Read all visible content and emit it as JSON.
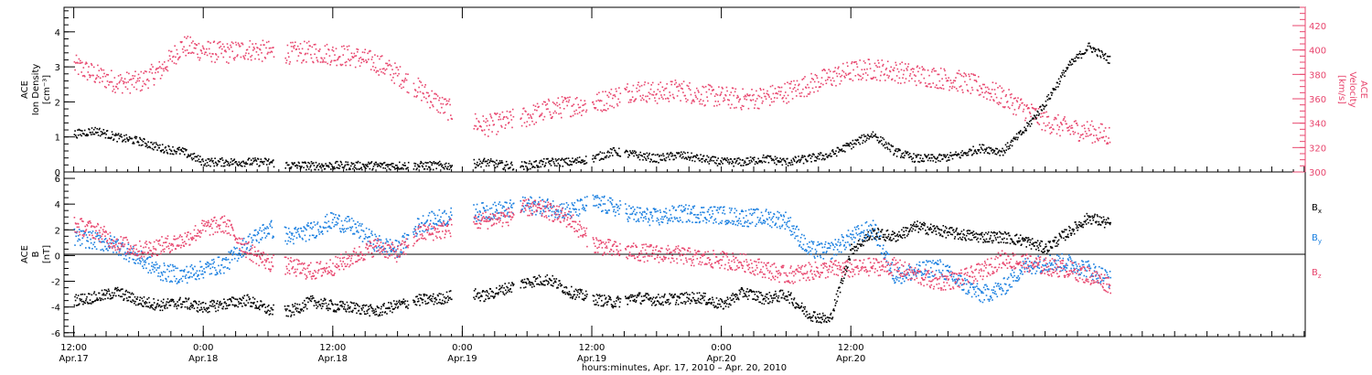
{
  "chart_data": [
    {
      "type": "scatter",
      "panel": "ACE ion density / velocity",
      "ylabel_lines": [
        "ACE",
        "Ion Density",
        "[cm⁻³]"
      ],
      "y2label_lines": [
        "ACE",
        "Velocity",
        "[km/s]"
      ],
      "ylim": [
        0,
        4.7
      ],
      "y_ticks": [
        "0",
        "1",
        "2",
        "3",
        "4"
      ],
      "y2lim": [
        300,
        435
      ],
      "y2_ticks": [
        "300",
        "320",
        "340",
        "360",
        "380",
        "400",
        "420"
      ],
      "xlim_hours": [
        0,
        96
      ],
      "data_gaps_hours": [
        [
          18.5,
          19.5
        ],
        [
          31.0,
          31.4
        ],
        [
          35.0,
          37.0
        ],
        [
          40.7,
          41.3
        ],
        [
          47.5,
          48.0
        ],
        [
          50.6,
          51.0
        ]
      ],
      "series": [
        {
          "name": "",
          "color": "#000000",
          "axis": "left",
          "x_hours": [
            0,
            2,
            4,
            6,
            8,
            10,
            12,
            14,
            16,
            18,
            20,
            22,
            24,
            26,
            28,
            30,
            32,
            34,
            36,
            38,
            40,
            42,
            44,
            46,
            48,
            50,
            52,
            54,
            56,
            58,
            60,
            62,
            64,
            66,
            68,
            70,
            72,
            74,
            76,
            78,
            80,
            82,
            84,
            86,
            88,
            90,
            92,
            94,
            96
          ],
          "values": [
            1.1,
            1.2,
            1.0,
            0.9,
            0.7,
            0.6,
            0.3,
            0.3,
            0.3,
            0.3,
            0.2,
            0.2,
            0.2,
            0.2,
            0.2,
            0.2,
            0.2,
            0.2,
            0.2,
            0.3,
            0.2,
            0.2,
            0.3,
            0.3,
            0.4,
            0.6,
            0.5,
            0.4,
            0.5,
            0.4,
            0.3,
            0.3,
            0.4,
            0.3,
            0.4,
            0.5,
            0.8,
            1.1,
            0.6,
            0.4,
            0.4,
            0.5,
            0.7,
            0.6,
            1.2,
            2.0,
            3.0,
            3.6,
            3.2
          ]
        },
        {
          "name": "",
          "color": "#e8466e",
          "axis": "right",
          "x_hours": [
            0,
            2,
            4,
            6,
            8,
            10,
            12,
            14,
            16,
            18,
            20,
            22,
            24,
            26,
            28,
            30,
            32,
            34,
            36,
            38,
            40,
            42,
            44,
            46,
            48,
            50,
            52,
            54,
            56,
            58,
            60,
            62,
            64,
            66,
            68,
            70,
            72,
            74,
            76,
            78,
            80,
            82,
            84,
            86,
            88,
            90,
            92,
            94,
            96
          ],
          "values": [
            388,
            380,
            374,
            374,
            384,
            404,
            400,
            398,
            401,
            399,
            398,
            399,
            397,
            395,
            390,
            380,
            368,
            355,
            345,
            338,
            342,
            346,
            352,
            355,
            356,
            362,
            368,
            365,
            368,
            364,
            362,
            360,
            362,
            366,
            372,
            378,
            383,
            385,
            383,
            380,
            378,
            375,
            370,
            362,
            352,
            342,
            336,
            334,
            330
          ]
        }
      ]
    },
    {
      "type": "scatter",
      "panel": "ACE magnetic field components",
      "ylabel_lines": [
        "ACE",
        "B",
        "[nT]"
      ],
      "ylim": [
        -6.3,
        6.5
      ],
      "y_ticks": [
        "-6",
        "-4",
        "-2",
        "0",
        "2",
        "4",
        "6"
      ],
      "zero_line": true,
      "legend_placement": "right",
      "series": [
        {
          "name": "Bx",
          "color": "#000000",
          "x_hours": [
            0,
            2,
            4,
            6,
            8,
            10,
            12,
            14,
            16,
            18,
            20,
            22,
            24,
            26,
            28,
            30,
            32,
            34,
            36,
            38,
            40,
            42,
            44,
            46,
            48,
            50,
            52,
            54,
            56,
            58,
            60,
            62,
            64,
            66,
            68,
            70,
            72,
            74,
            76,
            78,
            80,
            82,
            84,
            86,
            88,
            90,
            92,
            94,
            96
          ],
          "values": [
            -3.4,
            -3.2,
            -2.8,
            -3.5,
            -3.8,
            -3.6,
            -4.0,
            -3.7,
            -3.4,
            -4.2,
            -4.3,
            -3.5,
            -3.9,
            -4.0,
            -4.3,
            -3.8,
            -3.4,
            -3.3,
            -2.8,
            -3.1,
            -2.5,
            -2.0,
            -1.8,
            -2.8,
            -3.3,
            -3.6,
            -3.2,
            -3.4,
            -3.3,
            -3.2,
            -3.8,
            -2.8,
            -3.3,
            -3.0,
            -4.5,
            -5.0,
            0.5,
            1.8,
            1.5,
            2.3,
            2.0,
            1.7,
            1.5,
            1.5,
            1.2,
            0.6,
            1.8,
            3.0,
            2.5
          ]
        },
        {
          "name": "By",
          "color": "#1a7fe0",
          "x_hours": [
            0,
            2,
            4,
            6,
            8,
            10,
            12,
            14,
            16,
            18,
            20,
            22,
            24,
            26,
            28,
            30,
            32,
            34,
            36,
            38,
            40,
            42,
            44,
            46,
            48,
            50,
            52,
            54,
            56,
            58,
            60,
            62,
            64,
            66,
            68,
            70,
            72,
            74,
            76,
            78,
            80,
            82,
            84,
            86,
            88,
            90,
            92,
            94,
            96
          ],
          "values": [
            1.5,
            1.2,
            0.8,
            -0.2,
            -1.2,
            -1.5,
            -1.0,
            -0.6,
            1.0,
            2.2,
            1.5,
            2.0,
            2.8,
            2.2,
            1.0,
            0.5,
            2.5,
            3.0,
            3.2,
            3.5,
            3.6,
            4.0,
            3.8,
            3.5,
            4.2,
            3.8,
            3.2,
            3.0,
            3.3,
            3.3,
            3.2,
            3.0,
            3.0,
            2.8,
            0.5,
            0.4,
            1.5,
            2.2,
            -1.5,
            -1.2,
            -0.8,
            -2.0,
            -3.0,
            -2.5,
            -0.8,
            -0.5,
            -0.5,
            -1.0,
            -1.8
          ]
        },
        {
          "name": "Bz",
          "color": "#e8466e",
          "x_hours": [
            0,
            2,
            4,
            6,
            8,
            10,
            12,
            14,
            16,
            18,
            20,
            22,
            24,
            26,
            28,
            30,
            32,
            34,
            36,
            38,
            40,
            42,
            44,
            46,
            48,
            50,
            52,
            54,
            56,
            58,
            60,
            62,
            64,
            66,
            68,
            70,
            72,
            74,
            76,
            78,
            80,
            82,
            84,
            86,
            88,
            90,
            92,
            94,
            96
          ],
          "values": [
            2.4,
            2.0,
            1.0,
            0.5,
            0.8,
            1.2,
            2.2,
            2.5,
            0.5,
            -0.5,
            -0.8,
            -1.2,
            -0.8,
            0.0,
            0.8,
            0.2,
            1.8,
            2.0,
            2.5,
            2.8,
            3.0,
            3.8,
            3.5,
            2.8,
            1.0,
            0.5,
            0.3,
            0.2,
            0.1,
            -0.2,
            -0.3,
            -0.5,
            -1.0,
            -1.5,
            -1.2,
            -1.0,
            -1.0,
            -0.8,
            -0.8,
            -1.5,
            -2.0,
            -1.8,
            -1.2,
            -0.2,
            -0.5,
            -0.8,
            -1.0,
            -1.5,
            -2.2
          ]
        }
      ]
    }
  ],
  "x_axis": {
    "title": "hours:minutes, Apr. 17, 2010 – Apr. 20, 2010",
    "ticks": [
      {
        "time": "12:00",
        "date": "Apr.17"
      },
      {
        "time": "0:00",
        "date": "Apr.18"
      },
      {
        "time": "12:00",
        "date": "Apr.18"
      },
      {
        "time": "0:00",
        "date": "Apr.19"
      },
      {
        "time": "12:00",
        "date": "Apr.19"
      },
      {
        "time": "0:00",
        "date": "Apr.20"
      },
      {
        "time": "12:00",
        "date": "Apr.20"
      }
    ],
    "range_hours": [
      -0.9,
      114.1
    ]
  },
  "legend": {
    "bx": "B",
    "bx_sub": "x",
    "by": "B",
    "by_sub": "y",
    "bz": "B",
    "bz_sub": "z"
  },
  "colors": {
    "black": "#000000",
    "blue": "#1a7fe0",
    "red": "#e8466e"
  }
}
